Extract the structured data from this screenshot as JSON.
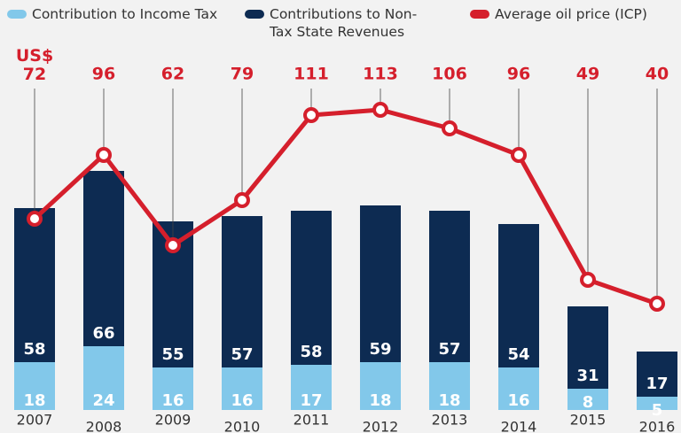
{
  "chart_data": {
    "type": "bar+line",
    "categories": [
      "2007",
      "2008",
      "2009",
      "2010",
      "2011",
      "2012",
      "2013",
      "2014",
      "2015",
      "2016"
    ],
    "series": [
      {
        "name": "Contribution to Income Tax",
        "color": "#82c8ea",
        "values": [
          18,
          24,
          16,
          16,
          17,
          18,
          18,
          16,
          8,
          5
        ]
      },
      {
        "name": "Contributions to Non-Tax State Revenues",
        "color": "#0d2b52",
        "values": [
          58,
          66,
          55,
          57,
          58,
          59,
          57,
          54,
          31,
          17
        ]
      },
      {
        "name": "Average oil price (ICP)",
        "color": "#d51f2c",
        "axis": "y2",
        "type": "line",
        "values": [
          72,
          96,
          62,
          79,
          111,
          113,
          106,
          96,
          49,
          40
        ],
        "value_labels": [
          "US$ 72",
          "96",
          "62",
          "79",
          "111",
          "113",
          "106",
          "96",
          "49",
          "40"
        ]
      }
    ],
    "stacked": true,
    "ylim": [
      0,
      140
    ],
    "y2lim": [
      0,
      140
    ],
    "legend": "top"
  }
}
